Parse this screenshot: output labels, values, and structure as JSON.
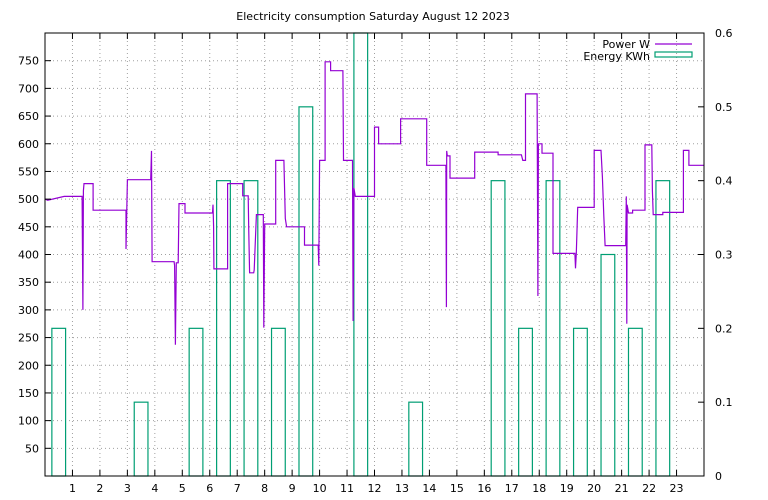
{
  "chart_data": {
    "type": "line",
    "title": "Electricity consumption Saturday August 12 2023",
    "xlabel": "",
    "ylabel": "",
    "xlim": [
      0,
      24
    ],
    "ylim": [
      0,
      800
    ],
    "y2lim": [
      0,
      0.6
    ],
    "x_ticks": [
      1,
      2,
      3,
      4,
      5,
      6,
      7,
      8,
      9,
      10,
      11,
      12,
      13,
      14,
      15,
      16,
      17,
      18,
      19,
      20,
      21,
      22,
      23
    ],
    "x_tick_labels": [
      "1",
      "2",
      "3",
      "4",
      "5",
      "6",
      "7",
      "8",
      "9",
      "10",
      "11",
      "12",
      "13",
      "14",
      "15",
      "16",
      "17",
      "18",
      "19",
      "20",
      "21",
      "22",
      "23"
    ],
    "y_ticks": [
      50,
      100,
      150,
      200,
      250,
      300,
      350,
      400,
      450,
      500,
      550,
      600,
      650,
      700,
      750
    ],
    "y_tick_labels": [
      "50",
      "100",
      "150",
      "200",
      "250",
      "300",
      "350",
      "400",
      "450",
      "500",
      "550",
      "600",
      "650",
      "700",
      "750"
    ],
    "y2_ticks": [
      0,
      0.1,
      0.2,
      0.3,
      0.4,
      0.5,
      0.6
    ],
    "y2_tick_labels": [
      "0",
      "0.1",
      "0.2",
      "0.3",
      "0.4",
      "0.5",
      "0.6"
    ],
    "grid": true,
    "legend_position": "top-right",
    "series": [
      {
        "name": "Power W",
        "axis": "y1",
        "style": "steps",
        "color": "#9400d3",
        "points": [
          [
            0.0,
            500
          ],
          [
            0.1,
            498
          ],
          [
            0.7,
            505
          ],
          [
            1.35,
            505
          ],
          [
            1.38,
            300
          ],
          [
            1.4,
            515
          ],
          [
            1.42,
            528
          ],
          [
            1.75,
            528
          ],
          [
            1.75,
            480
          ],
          [
            2.95,
            480
          ],
          [
            2.95,
            410
          ],
          [
            3.0,
            535
          ],
          [
            3.85,
            535
          ],
          [
            3.88,
            587
          ],
          [
            3.9,
            387
          ],
          [
            4.7,
            387
          ],
          [
            4.72,
            380
          ],
          [
            4.75,
            237
          ],
          [
            4.78,
            385
          ],
          [
            4.85,
            385
          ],
          [
            4.88,
            492
          ],
          [
            5.1,
            492
          ],
          [
            5.1,
            475
          ],
          [
            6.1,
            475
          ],
          [
            6.12,
            490
          ],
          [
            6.14,
            450
          ],
          [
            6.15,
            374
          ],
          [
            6.65,
            374
          ],
          [
            6.65,
            528
          ],
          [
            7.2,
            528
          ],
          [
            7.2,
            506
          ],
          [
            7.4,
            506
          ],
          [
            7.42,
            448
          ],
          [
            7.45,
            367
          ],
          [
            7.6,
            367
          ],
          [
            7.62,
            372
          ],
          [
            7.7,
            472
          ],
          [
            7.95,
            472
          ],
          [
            7.97,
            268
          ],
          [
            8.0,
            455
          ],
          [
            8.4,
            455
          ],
          [
            8.4,
            570
          ],
          [
            8.7,
            570
          ],
          [
            8.75,
            465
          ],
          [
            8.8,
            450
          ],
          [
            9.45,
            450
          ],
          [
            9.45,
            417
          ],
          [
            9.95,
            417
          ],
          [
            9.97,
            380
          ],
          [
            10.0,
            570
          ],
          [
            10.2,
            570
          ],
          [
            10.2,
            748
          ],
          [
            10.4,
            748
          ],
          [
            10.4,
            732
          ],
          [
            10.85,
            732
          ],
          [
            10.87,
            570
          ],
          [
            11.2,
            570
          ],
          [
            11.22,
            280
          ],
          [
            11.25,
            520
          ],
          [
            11.3,
            505
          ],
          [
            12.0,
            505
          ],
          [
            12.0,
            630
          ],
          [
            12.15,
            630
          ],
          [
            12.15,
            600
          ],
          [
            12.95,
            600
          ],
          [
            12.95,
            645
          ],
          [
            13.9,
            645
          ],
          [
            13.9,
            561
          ],
          [
            14.6,
            561
          ],
          [
            14.62,
            305
          ],
          [
            14.63,
            587
          ],
          [
            14.65,
            578
          ],
          [
            14.75,
            578
          ],
          [
            14.75,
            538
          ],
          [
            15.65,
            538
          ],
          [
            15.65,
            585
          ],
          [
            16.5,
            585
          ],
          [
            16.5,
            580
          ],
          [
            17.35,
            580
          ],
          [
            17.4,
            570
          ],
          [
            17.5,
            570
          ],
          [
            17.5,
            690
          ],
          [
            17.92,
            690
          ],
          [
            17.95,
            325
          ],
          [
            17.97,
            600
          ],
          [
            18.1,
            600
          ],
          [
            18.1,
            583
          ],
          [
            18.5,
            583
          ],
          [
            18.5,
            402
          ],
          [
            19.3,
            402
          ],
          [
            19.32,
            375
          ],
          [
            19.35,
            402
          ],
          [
            19.4,
            485
          ],
          [
            20.0,
            485
          ],
          [
            20.0,
            588
          ],
          [
            20.25,
            588
          ],
          [
            20.3,
            540
          ],
          [
            20.35,
            470
          ],
          [
            20.4,
            416
          ],
          [
            21.15,
            416
          ],
          [
            21.17,
            505
          ],
          [
            21.19,
            275
          ],
          [
            21.2,
            490
          ],
          [
            21.25,
            475
          ],
          [
            21.4,
            475
          ],
          [
            21.4,
            480
          ],
          [
            21.85,
            480
          ],
          [
            21.85,
            598
          ],
          [
            22.1,
            598
          ],
          [
            22.12,
            515
          ],
          [
            22.15,
            472
          ],
          [
            22.5,
            472
          ],
          [
            22.5,
            476
          ],
          [
            23.25,
            476
          ],
          [
            23.25,
            588
          ],
          [
            23.45,
            588
          ],
          [
            23.45,
            561
          ],
          [
            24.0,
            561
          ]
        ]
      },
      {
        "name": "Energy KWh",
        "axis": "y2",
        "style": "boxes",
        "color": "#009e73",
        "bars": [
          [
            1,
            0.2
          ],
          [
            2,
            0
          ],
          [
            3,
            0
          ],
          [
            4,
            0.1
          ],
          [
            5,
            0
          ],
          [
            6,
            0.2
          ],
          [
            7,
            0.4
          ],
          [
            8,
            0.4
          ],
          [
            9,
            0.2
          ],
          [
            10,
            0.5
          ],
          [
            11,
            0
          ],
          [
            12,
            0.6
          ],
          [
            13,
            0
          ],
          [
            14,
            0.1
          ],
          [
            15,
            0
          ],
          [
            16,
            0
          ],
          [
            17,
            0.4
          ],
          [
            18,
            0.2
          ],
          [
            19,
            0.4
          ],
          [
            20,
            0.2
          ],
          [
            21,
            0.3
          ],
          [
            22,
            0.2
          ],
          [
            23,
            0.4
          ],
          [
            24,
            0
          ]
        ]
      }
    ]
  }
}
